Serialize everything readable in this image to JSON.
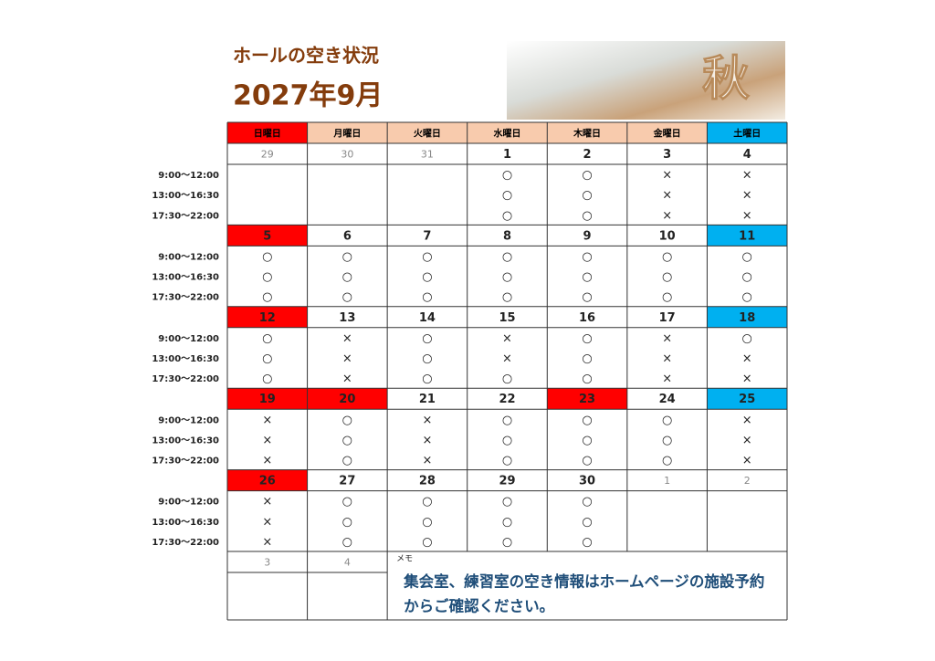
{
  "header": {
    "title": "ホールの空き状況",
    "month": "2027年9月",
    "image_text": "秋"
  },
  "weekdays": [
    {
      "label": "日曜日",
      "color": "#ff0000"
    },
    {
      "label": "月曜日",
      "color": "#f8cbad"
    },
    {
      "label": "火曜日",
      "color": "#f8cbad"
    },
    {
      "label": "水曜日",
      "color": "#f8cbad"
    },
    {
      "label": "木曜日",
      "color": "#f8cbad"
    },
    {
      "label": "金曜日",
      "color": "#f8cbad"
    },
    {
      "label": "土曜日",
      "color": "#00b0f0"
    }
  ],
  "time_slots": [
    "9:00～12:00",
    "13:00～16:30",
    "17:30～22:00"
  ],
  "weeks": [
    {
      "days": [
        {
          "date": "29",
          "muted": true
        },
        {
          "date": "30",
          "muted": true
        },
        {
          "date": "31",
          "muted": true
        },
        {
          "date": "1",
          "status": [
            "○",
            "○",
            "○"
          ]
        },
        {
          "date": "2",
          "status": [
            "○",
            "○",
            "○"
          ]
        },
        {
          "date": "3",
          "status": [
            "×",
            "×",
            "×"
          ]
        },
        {
          "date": "4",
          "status": [
            "×",
            "×",
            "×"
          ]
        }
      ]
    },
    {
      "days": [
        {
          "date": "5",
          "color": "#ff0000",
          "status": [
            "○",
            "○",
            "○"
          ]
        },
        {
          "date": "6",
          "status": [
            "○",
            "○",
            "○"
          ]
        },
        {
          "date": "7",
          "status": [
            "○",
            "○",
            "○"
          ]
        },
        {
          "date": "8",
          "status": [
            "○",
            "○",
            "○"
          ]
        },
        {
          "date": "9",
          "status": [
            "○",
            "○",
            "○"
          ]
        },
        {
          "date": "10",
          "status": [
            "○",
            "○",
            "○"
          ]
        },
        {
          "date": "11",
          "color": "#00b0f0",
          "status": [
            "○",
            "○",
            "○"
          ]
        }
      ]
    },
    {
      "days": [
        {
          "date": "12",
          "color": "#ff0000",
          "status": [
            "○",
            "○",
            "○"
          ]
        },
        {
          "date": "13",
          "status": [
            "×",
            "×",
            "×"
          ]
        },
        {
          "date": "14",
          "status": [
            "○",
            "○",
            "○"
          ]
        },
        {
          "date": "15",
          "status": [
            "×",
            "×",
            "○"
          ]
        },
        {
          "date": "16",
          "status": [
            "○",
            "○",
            "○"
          ]
        },
        {
          "date": "17",
          "status": [
            "×",
            "×",
            "×"
          ]
        },
        {
          "date": "18",
          "color": "#00b0f0",
          "status": [
            "○",
            "×",
            "×"
          ]
        }
      ]
    },
    {
      "days": [
        {
          "date": "19",
          "color": "#ff0000",
          "status": [
            "×",
            "×",
            "×"
          ]
        },
        {
          "date": "20",
          "color": "#ff0000",
          "status": [
            "○",
            "○",
            "○"
          ]
        },
        {
          "date": "21",
          "status": [
            "×",
            "×",
            "×"
          ]
        },
        {
          "date": "22",
          "status": [
            "○",
            "○",
            "○"
          ]
        },
        {
          "date": "23",
          "color": "#ff0000",
          "status": [
            "○",
            "○",
            "○"
          ]
        },
        {
          "date": "24",
          "status": [
            "○",
            "○",
            "○"
          ]
        },
        {
          "date": "25",
          "color": "#00b0f0",
          "status": [
            "×",
            "×",
            "×"
          ]
        }
      ]
    },
    {
      "days": [
        {
          "date": "26",
          "color": "#ff0000",
          "status": [
            "×",
            "×",
            "×"
          ]
        },
        {
          "date": "27",
          "status": [
            "○",
            "○",
            "○"
          ]
        },
        {
          "date": "28",
          "status": [
            "○",
            "○",
            "○"
          ]
        },
        {
          "date": "29",
          "status": [
            "○",
            "○",
            "○"
          ]
        },
        {
          "date": "30",
          "status": [
            "○",
            "○",
            "○"
          ]
        },
        {
          "date": "1",
          "muted": true
        },
        {
          "date": "2",
          "muted": true
        }
      ]
    }
  ],
  "footer": {
    "dates": [
      "3",
      "4"
    ],
    "memo_label": "メモ",
    "memo_lines": [
      "集会室、練習室の空き情報はホームページの施設予約",
      "からご確認ください。"
    ]
  }
}
